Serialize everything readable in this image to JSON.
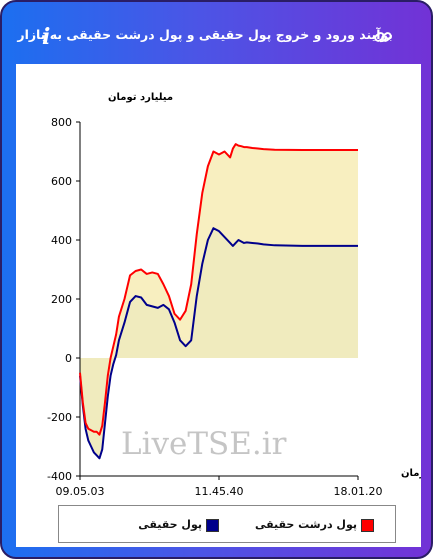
{
  "header": {
    "title": "برآیند ورود و خروج پول حقیقی و پول درشت حقیقی به بازار",
    "info_glyph": "i"
  },
  "watermark": "LiveTSE.ir",
  "colors": {
    "real_money": "#00008b",
    "big_real_money": "#ff0000",
    "area_fill": "#f0ebbe",
    "area_fill_big": "#f8efc0"
  },
  "chart_data": {
    "type": "line",
    "ylabel": "میلیارد تومان",
    "xlabel": "زمان",
    "ylim": [
      -400,
      800
    ],
    "yticks": [
      -400,
      -200,
      0,
      200,
      400,
      600,
      800
    ],
    "xtick_labels": [
      "09.05.03",
      "11.45.40",
      "18.01.20"
    ],
    "grid": false,
    "legend_position": "bottom",
    "series": [
      {
        "name": "پول حقیقی",
        "color": "#00008b",
        "x": [
          0,
          1,
          2,
          3,
          4,
          5,
          6,
          7,
          8,
          9,
          10,
          11,
          12,
          13,
          14,
          16,
          18,
          20,
          22,
          24,
          26,
          28,
          30,
          32,
          34,
          36,
          38,
          40,
          42,
          44,
          46,
          48,
          50,
          52,
          54,
          55,
          56,
          57,
          58,
          59,
          60,
          62,
          64,
          66,
          70,
          80,
          90,
          100
        ],
        "y": [
          -60,
          -160,
          -240,
          -280,
          -300,
          -320,
          -330,
          -340,
          -310,
          -220,
          -130,
          -60,
          -20,
          10,
          60,
          120,
          190,
          210,
          205,
          180,
          175,
          170,
          180,
          165,
          120,
          60,
          40,
          60,
          210,
          320,
          400,
          440,
          430,
          410,
          390,
          380,
          390,
          400,
          395,
          390,
          392,
          390,
          388,
          385,
          382,
          380,
          380,
          380
        ]
      },
      {
        "name": "پول درشت حقیقی",
        "color": "#ff0000",
        "x": [
          0,
          1,
          2,
          3,
          4,
          5,
          6,
          7,
          8,
          9,
          10,
          11,
          12,
          13,
          14,
          16,
          18,
          20,
          22,
          24,
          26,
          28,
          30,
          32,
          34,
          36,
          38,
          40,
          42,
          44,
          46,
          48,
          50,
          52,
          54,
          55,
          56,
          57,
          58,
          59,
          60,
          62,
          64,
          66,
          70,
          80,
          90,
          100
        ],
        "y": [
          -50,
          -150,
          -220,
          -240,
          -245,
          -250,
          -250,
          -260,
          -230,
          -150,
          -60,
          0,
          40,
          80,
          140,
          200,
          280,
          295,
          300,
          285,
          290,
          285,
          250,
          210,
          150,
          130,
          160,
          250,
          420,
          560,
          650,
          700,
          690,
          700,
          680,
          710,
          725,
          720,
          718,
          715,
          715,
          712,
          710,
          708,
          706,
          705,
          705,
          705
        ]
      }
    ]
  },
  "legend": [
    {
      "label": "پول حقیقی",
      "color": "#00008b"
    },
    {
      "label": "پول درشت حقیقی",
      "color": "#ff0000"
    }
  ]
}
